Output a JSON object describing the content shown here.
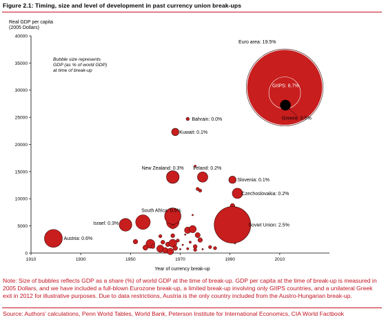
{
  "figure_title": "Figure 2.1: Timing, size and level of development in past currency union break-ups",
  "note": "Note: Size of bubbles reflects GDP as a share (%) of world GDP at the time of break-up.  GDP per capita at the time of break-up is measured in 2005 Dollars, and we have included a full-blown Eurozone break-up, a limited break-up involving only GIIPS countries, and a unilateral Greek exit in 2012 for illustrative purposes. Due to data restrictions, Austria is the only country included from the Austro-Hungarian break-up.",
  "source": "Source: Authors' calculations, Penn World Tables, World Bank, Peterson Institute for International Economics, CIA World Factbook",
  "colors": {
    "bubble_fill": "#c81e1e",
    "bubble_stroke": "#2a0000",
    "accent_red": "#c1121f",
    "greece_fill": "#000000"
  },
  "chart_data": {
    "type": "scatter",
    "title": "",
    "ylabel_lines": [
      "Real GDP per capita",
      "(2005 Dollars)"
    ],
    "xlabel": "Year of currency break-up",
    "xlim": [
      1910,
      2030
    ],
    "ylim": [
      0,
      40000
    ],
    "x_ticks": [
      1910,
      1930,
      1950,
      1970,
      1990,
      2010
    ],
    "y_ticks": [
      0,
      5000,
      10000,
      15000,
      20000,
      25000,
      30000,
      35000,
      40000
    ],
    "y_tick_labels": [
      "0",
      "5000",
      "10000",
      "15000",
      "20000",
      "25000",
      "30000",
      "35000",
      "40000"
    ],
    "grid": false,
    "size_legend_lines": [
      "Bubble size represents",
      "GDP (as % of world GDP)",
      "at time of break-up"
    ],
    "labeled_points": [
      {
        "label": "Euro area: 19.5%",
        "x": 2012,
        "y": 30500,
        "share": 19.5,
        "fill": "red"
      },
      {
        "label": "GIIPS: 6.7%",
        "x": 2012,
        "y": 29000,
        "share": 6.7,
        "fill": "red"
      },
      {
        "label": "Greece: 0.5%",
        "x": 2012,
        "y": 28000,
        "share": 0.5,
        "fill": "black"
      },
      {
        "label": "Bahrain: 0.0%",
        "x": 1973,
        "y": 24700,
        "share": 0.0,
        "fill": "red"
      },
      {
        "label": "Kuwait: 0.1%",
        "x": 1968,
        "y": 22300,
        "share": 0.1,
        "fill": "red"
      },
      {
        "label": "New Zealand: 0.3%",
        "x": 1967,
        "y": 14000,
        "share": 0.3,
        "fill": "red"
      },
      {
        "label": "Ireland: 0.2%",
        "x": 1979,
        "y": 14000,
        "share": 0.2,
        "fill": "red"
      },
      {
        "label": "Slovenia: 0.1%",
        "x": 1991,
        "y": 13500,
        "share": 0.1,
        "fill": "red"
      },
      {
        "label": "Czechoslovakia: 0.2%",
        "x": 1993,
        "y": 11000,
        "share": 0.2,
        "fill": "red"
      },
      {
        "label": "South Africa: 0.5%",
        "x": 1967,
        "y": 6800,
        "share": 0.5,
        "fill": "red"
      },
      {
        "label": "Israel: 0.3%",
        "x": 1948,
        "y": 5200,
        "share": 0.3,
        "fill": "red"
      },
      {
        "label": "Soviet Union: 2.5%",
        "x": 1991,
        "y": 5200,
        "share": 2.5,
        "fill": "red"
      },
      {
        "label": "Austria: 0.6%",
        "x": 1919,
        "y": 2700,
        "share": 0.6,
        "fill": "red"
      }
    ],
    "unlabeled_points": [
      {
        "x": 1977,
        "y": 11800,
        "share": 0.02
      },
      {
        "x": 1978,
        "y": 11500,
        "share": 0.02
      },
      {
        "x": 1976,
        "y": 16000,
        "share": 0.01
      },
      {
        "x": 1991,
        "y": 8700,
        "share": 0.04
      },
      {
        "x": 1975,
        "y": 7000,
        "share": 0.005
      },
      {
        "x": 1967,
        "y": 5700,
        "share": 0.3
      },
      {
        "x": 1955,
        "y": 5700,
        "share": 0.4
      },
      {
        "x": 1949,
        "y": 4500,
        "share": 0.01
      },
      {
        "x": 1967,
        "y": 4800,
        "share": 0.03
      },
      {
        "x": 1973,
        "y": 4200,
        "share": 0.08
      },
      {
        "x": 1975,
        "y": 4400,
        "share": 0.1
      },
      {
        "x": 1986,
        "y": 4700,
        "share": 0.03
      },
      {
        "x": 1987,
        "y": 5000,
        "share": 0.02
      },
      {
        "x": 1967,
        "y": 3200,
        "share": 0.03
      },
      {
        "x": 1972,
        "y": 3400,
        "share": 0.005
      },
      {
        "x": 1962,
        "y": 3100,
        "share": 0.02
      },
      {
        "x": 1977,
        "y": 3300,
        "share": 0.05
      },
      {
        "x": 1952,
        "y": 2100,
        "share": 0.04
      },
      {
        "x": 1958,
        "y": 1700,
        "share": 0.15
      },
      {
        "x": 1963,
        "y": 2000,
        "share": 0.03
      },
      {
        "x": 1965,
        "y": 1600,
        "share": 0.04
      },
      {
        "x": 1967,
        "y": 1800,
        "share": 0.12
      },
      {
        "x": 1969,
        "y": 2300,
        "share": 0.02
      },
      {
        "x": 1971,
        "y": 1500,
        "share": 0.005
      },
      {
        "x": 1974,
        "y": 2000,
        "share": 0.01
      },
      {
        "x": 1976,
        "y": 1200,
        "share": 0.03
      },
      {
        "x": 1978,
        "y": 2400,
        "share": 0.04
      },
      {
        "x": 1982,
        "y": 1100,
        "share": 0.02
      },
      {
        "x": 1956,
        "y": 1000,
        "share": 0.05
      },
      {
        "x": 1959,
        "y": 1200,
        "share": 0.03
      },
      {
        "x": 1962,
        "y": 800,
        "share": 0.1
      },
      {
        "x": 1964,
        "y": 500,
        "share": 0.06
      },
      {
        "x": 1966,
        "y": 300,
        "share": 0.08
      },
      {
        "x": 1968,
        "y": 900,
        "share": 0.04
      },
      {
        "x": 1970,
        "y": 700,
        "share": 0.005
      },
      {
        "x": 1973,
        "y": 800,
        "share": 0.01
      },
      {
        "x": 1976,
        "y": 600,
        "share": 0.02
      },
      {
        "x": 1979,
        "y": 700,
        "share": 0.005
      },
      {
        "x": 1984,
        "y": 900,
        "share": 0.02
      },
      {
        "x": 1992,
        "y": 1800,
        "share": 0.005
      }
    ]
  }
}
